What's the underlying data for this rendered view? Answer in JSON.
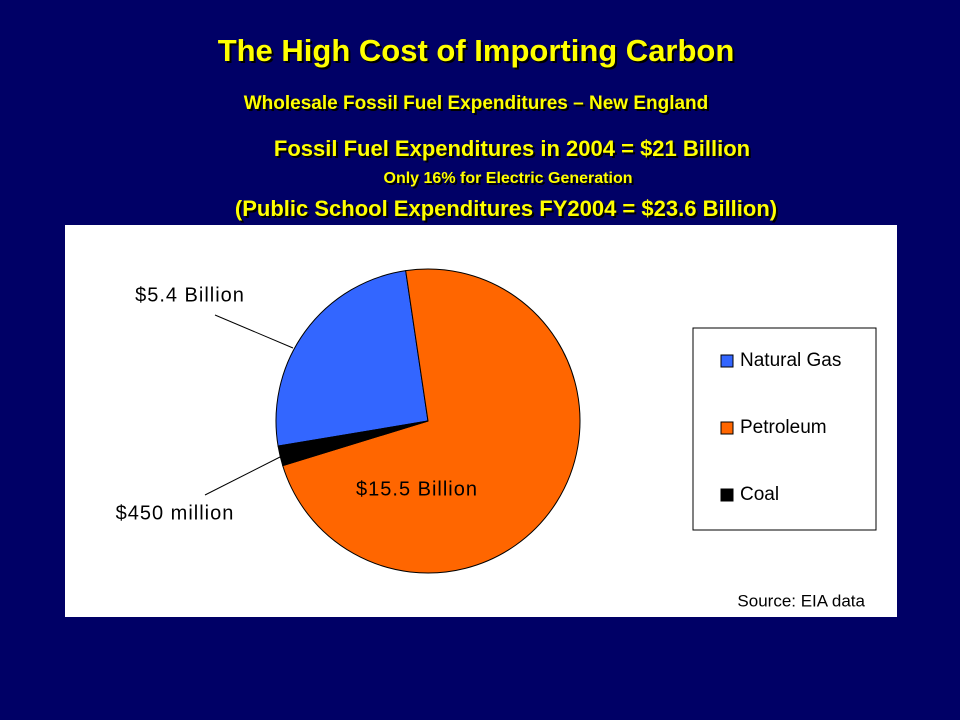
{
  "slide": {
    "title": "The High Cost of Importing Carbon",
    "subtitle": "Wholesale Fossil Fuel Expenditures – New England",
    "notes": [
      "Fossil Fuel Expenditures in 2004 = $21 Billion",
      "Only 16% for Electric Generation",
      "(Public School Expenditures FY2004 = $23.6 Billion)"
    ]
  },
  "chart_data": {
    "type": "pie",
    "categories": [
      "Natural Gas",
      "Petroleum",
      "Coal"
    ],
    "values": [
      5.4,
      15.5,
      0.45
    ],
    "value_labels": [
      "$5.4 Billion",
      "$15.5 Billion",
      "$450 million"
    ],
    "colors": [
      "#3366ff",
      "#ff6600",
      "#000000"
    ],
    "legend": "right",
    "source": "Source: EIA data"
  }
}
